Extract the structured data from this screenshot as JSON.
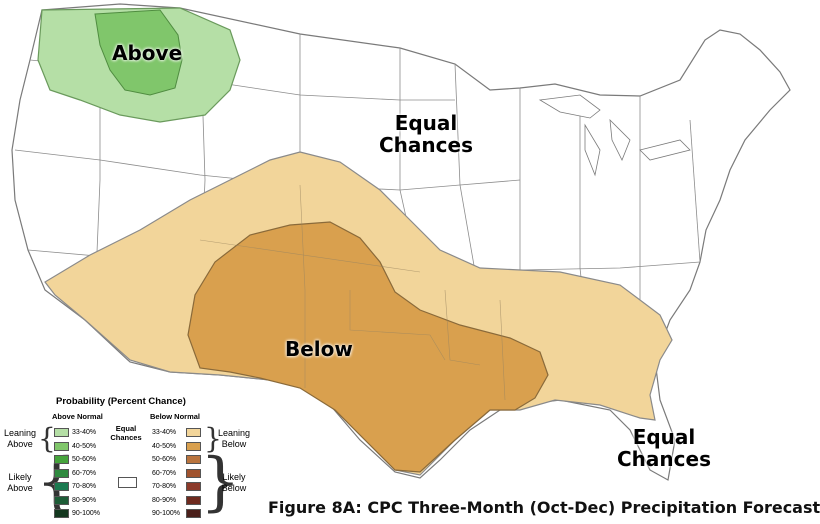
{
  "map": {
    "labels": {
      "above": "Above",
      "equal_chances_north": "Equal\nChances",
      "below": "Below",
      "equal_chances_southeast": "Equal\nChances"
    },
    "colors": {
      "above_33_40": "#b5dfa6",
      "above_40_50": "#80c66b",
      "below_33_40": "#f2d59a",
      "below_40_50": "#d9a04e",
      "land": "#ffffff",
      "border": "#7a7a7a"
    }
  },
  "legend": {
    "title": "Probability (Percent Chance)",
    "above_header": "Above Normal",
    "below_header": "Below Normal",
    "equal_label": "Equal\nChances",
    "leaning_above": "Leaning\nAbove",
    "likely_above": "Likely\nAbove",
    "leaning_below": "Leaning\nBelow",
    "likely_below": "Likely\nBelow",
    "above_rows": [
      {
        "label": "33-40%",
        "color": "#b5dfa6"
      },
      {
        "label": "40-50%",
        "color": "#80c66b"
      },
      {
        "label": "50-60%",
        "color": "#46a43c"
      },
      {
        "label": "60-70%",
        "color": "#2f8a3f"
      },
      {
        "label": "70-80%",
        "color": "#1b7a50"
      },
      {
        "label": "80-90%",
        "color": "#1d5c37"
      },
      {
        "label": "90-100%",
        "color": "#14381f"
      }
    ],
    "below_rows": [
      {
        "label": "33-40%",
        "color": "#f2d59a"
      },
      {
        "label": "40-50%",
        "color": "#d9a04e"
      },
      {
        "label": "50-60%",
        "color": "#b9743e"
      },
      {
        "label": "60-70%",
        "color": "#a0522d"
      },
      {
        "label": "70-80%",
        "color": "#8c3a2a"
      },
      {
        "label": "80-90%",
        "color": "#6e2a1e"
      },
      {
        "label": "90-100%",
        "color": "#4a1f1a"
      }
    ]
  },
  "caption": "Figure 8A: CPC Three-Month (Oct-Dec) Precipitation Forecast"
}
